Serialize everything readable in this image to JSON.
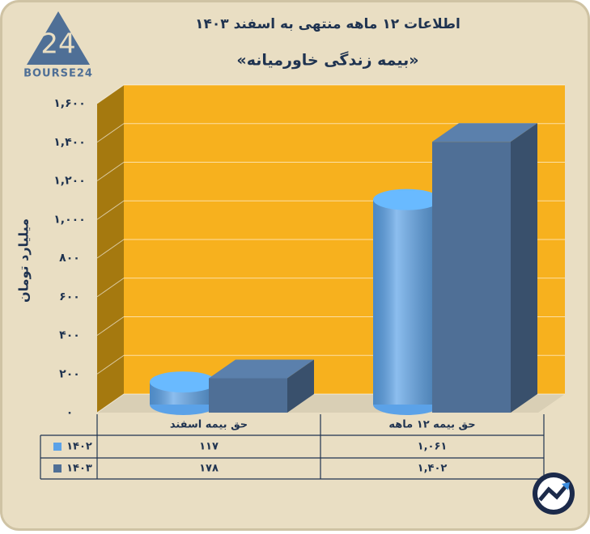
{
  "chart_data": {
    "type": "bar3d",
    "title": "اطلاعات ۱۲ ماهه منتهی به اسفند ۱۴۰۳",
    "subtitle": "«بیمه زندگی خاورمیانه»",
    "y_label": "میلیارد تومان",
    "logo": {
      "mark": "24",
      "text": "BOURSE24"
    },
    "categories": [
      "حق بیمه اسفند",
      "حق بیمه ۱۲ ماهه"
    ],
    "series": [
      {
        "name": "۱۴۰۲",
        "shape": "cylinder",
        "color": "#5ba2e8",
        "values": [
          117,
          1061
        ],
        "value_labels": [
          "۱۱۷",
          "۱,۰۶۱"
        ]
      },
      {
        "name": "۱۴۰۳",
        "shape": "box",
        "color": "#4f6f96",
        "values": [
          178,
          1402
        ],
        "value_labels": [
          "۱۷۸",
          "۱,۴۰۲"
        ]
      }
    ],
    "ylim": [
      0,
      1600
    ],
    "yticks": [
      {
        "value": 0,
        "label": "۰"
      },
      {
        "value": 200,
        "label": "۲۰۰"
      },
      {
        "value": 400,
        "label": "۴۰۰"
      },
      {
        "value": 600,
        "label": "۶۰۰"
      },
      {
        "value": 800,
        "label": "۸۰۰"
      },
      {
        "value": 1000,
        "label": "۱,۰۰۰"
      },
      {
        "value": 1200,
        "label": "۱,۲۰۰"
      },
      {
        "value": 1400,
        "label": "۱,۴۰۰"
      },
      {
        "value": 1600,
        "label": "۱,۶۰۰"
      }
    ],
    "grid": true
  }
}
